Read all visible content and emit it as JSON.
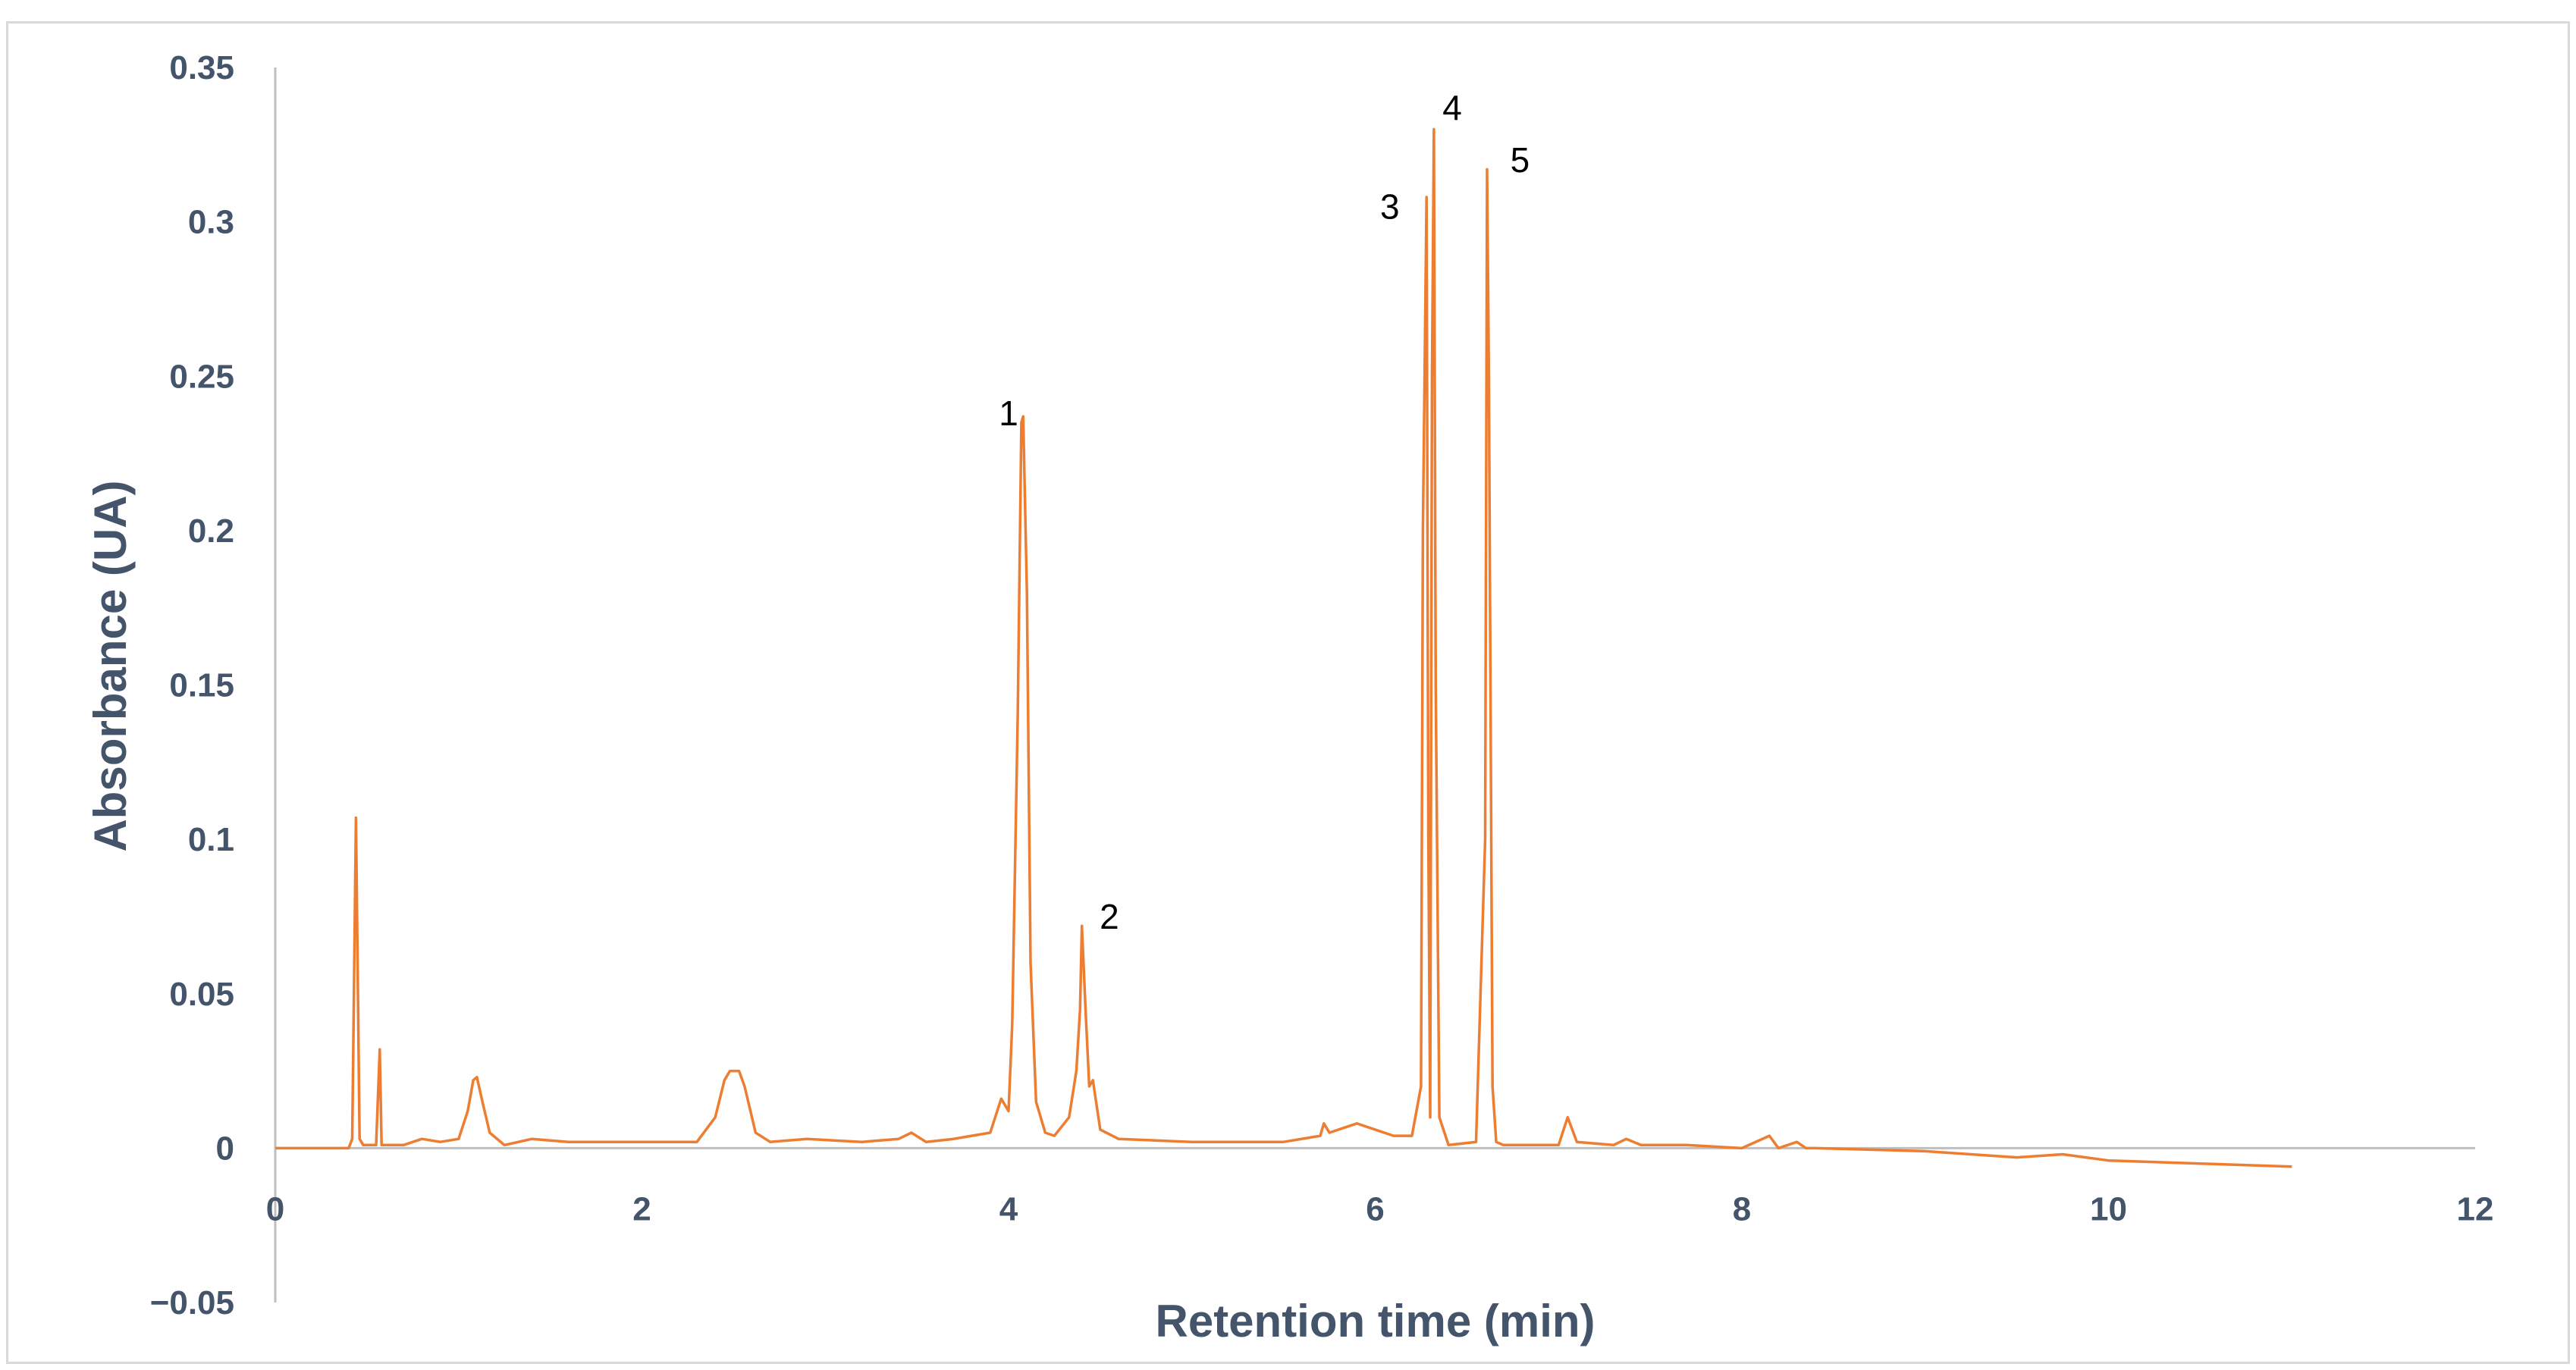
{
  "chart_data": {
    "type": "line",
    "title": "",
    "xlabel": "Retention time (min)",
    "ylabel": "Absorbance (UA)",
    "xlim": [
      0,
      12
    ],
    "ylim": [
      -0.05,
      0.35
    ],
    "x_ticks": [
      0,
      2,
      4,
      6,
      8,
      10,
      12
    ],
    "y_ticks": [
      -0.05,
      0,
      0.05,
      0.1,
      0.15,
      0.2,
      0.25,
      0.3,
      0.35
    ],
    "x_tick_labels": [
      "0",
      "2",
      "4",
      "6",
      "8",
      "10",
      "12"
    ],
    "y_tick_labels": [
      "−0.05",
      "0",
      "0.05",
      "0.1",
      "0.15",
      "0.2",
      "0.25",
      "0.3",
      "0.35"
    ],
    "grid": false,
    "legend": "none",
    "line_color": "#ed7d31",
    "series": [
      {
        "x": [
          0,
          0.4,
          0.42,
          0.44,
          0.46,
          0.48,
          0.5,
          0.55,
          0.57,
          0.58,
          0.6,
          0.7,
          0.8,
          0.9,
          1.0,
          1.05,
          1.08,
          1.1,
          1.13,
          1.17,
          1.25,
          1.4,
          1.6,
          2.0,
          2.3,
          2.4,
          2.45,
          2.48,
          2.53,
          2.56,
          2.62,
          2.7,
          2.9,
          3.2,
          3.4,
          3.47,
          3.55,
          3.7,
          3.9,
          3.96,
          4.0,
          4.02,
          4.05,
          4.07,
          4.08,
          4.1,
          4.12,
          4.15,
          4.2,
          4.25,
          4.33,
          4.37,
          4.39,
          4.4,
          4.42,
          4.44,
          4.46,
          4.5,
          4.6,
          5.0,
          5.5,
          5.7,
          5.72,
          5.75,
          5.9,
          6.1,
          6.2,
          6.25,
          6.26,
          6.28,
          6.29,
          6.3,
          6.31,
          6.32,
          6.33,
          6.35,
          6.4,
          6.55,
          6.6,
          6.61,
          6.62,
          6.64,
          6.66,
          6.7,
          7.0,
          7.05,
          7.1,
          7.3,
          7.37,
          7.45,
          7.7,
          8.0,
          8.15,
          8.2,
          8.3,
          8.35,
          8.4,
          9.0,
          9.5,
          9.75,
          10.0,
          10.5,
          11.0
        ],
        "y": [
          0,
          0,
          0.003,
          0.107,
          0.003,
          0.001,
          0.001,
          0.001,
          0.032,
          0.001,
          0.001,
          0.001,
          0.003,
          0.002,
          0.003,
          0.012,
          0.022,
          0.023,
          0.015,
          0.005,
          0.001,
          0.003,
          0.002,
          0.002,
          0.002,
          0.01,
          0.022,
          0.025,
          0.025,
          0.02,
          0.005,
          0.002,
          0.003,
          0.002,
          0.003,
          0.005,
          0.002,
          0.003,
          0.005,
          0.016,
          0.012,
          0.04,
          0.14,
          0.235,
          0.237,
          0.18,
          0.06,
          0.015,
          0.005,
          0.004,
          0.01,
          0.025,
          0.045,
          0.072,
          0.045,
          0.02,
          0.022,
          0.006,
          0.003,
          0.002,
          0.002,
          0.004,
          0.008,
          0.005,
          0.008,
          0.004,
          0.004,
          0.02,
          0.2,
          0.308,
          0.1,
          0.01,
          0.25,
          0.33,
          0.15,
          0.01,
          0.001,
          0.002,
          0.1,
          0.317,
          0.25,
          0.02,
          0.002,
          0.001,
          0.001,
          0.01,
          0.002,
          0.001,
          0.003,
          0.001,
          0.001,
          0,
          0.004,
          0,
          0.002,
          0,
          0,
          -0.001,
          -0.003,
          -0.002,
          -0.004,
          -0.005,
          -0.006
        ]
      }
    ],
    "annotations": [
      {
        "text": "1",
        "x": 4.0,
        "y": 0.238
      },
      {
        "text": "2",
        "x": 4.55,
        "y": 0.075
      },
      {
        "text": "3",
        "x": 6.08,
        "y": 0.305
      },
      {
        "text": "4",
        "x": 6.42,
        "y": 0.337
      },
      {
        "text": "5",
        "x": 6.79,
        "y": 0.32
      }
    ]
  }
}
